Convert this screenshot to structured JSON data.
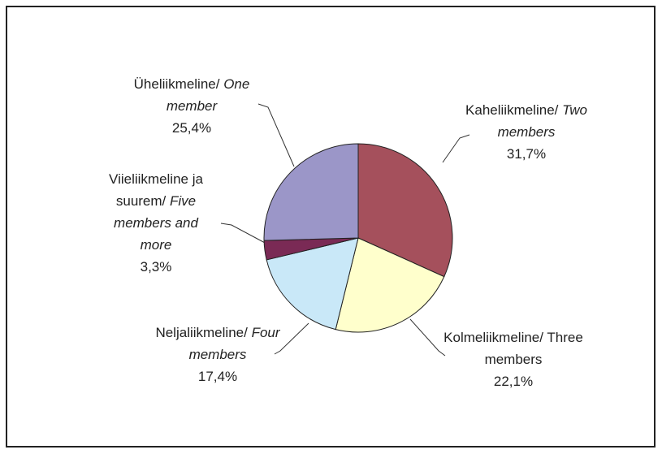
{
  "chart_data": {
    "type": "pie",
    "categories": [
      {
        "et": "Kaheliikmeline/",
        "en": "Two members",
        "italic": true
      },
      {
        "et": "Kolmeliikmeline/",
        "en": "Three members",
        "italic": false
      },
      {
        "et": "Neljaliikmeline/",
        "en": "Four members",
        "italic": true
      },
      {
        "et": "Viieliikmeline ja suurem/",
        "en": "Five members and more",
        "italic": true
      },
      {
        "et": "Üheliikmeline/",
        "en": "One member",
        "italic": true
      }
    ],
    "values": [
      31.7,
      22.1,
      17.4,
      3.3,
      25.4
    ],
    "value_labels": [
      "31,7%",
      "22,1%",
      "17,4%",
      "3,3%",
      "25,4%"
    ],
    "colors": [
      "#a5505c",
      "#ffffcc",
      "#c9e8f8",
      "#7a2a55",
      "#9b96c8"
    ]
  }
}
